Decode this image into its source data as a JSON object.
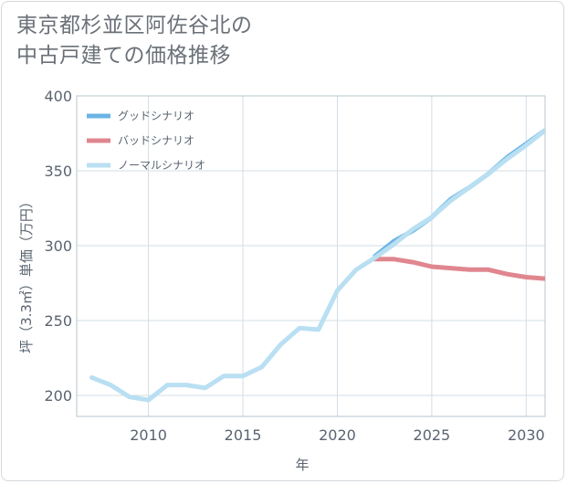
{
  "title": {
    "line1": "東京都杉並区阿佐谷北の",
    "line2": "中古戸建ての価格推移"
  },
  "chart_data": {
    "type": "line",
    "xlabel": "年",
    "ylabel": "坪（3.3㎡）単価（万円）",
    "xlim": [
      2006.2,
      2031.0
    ],
    "ylim": [
      186,
      400
    ],
    "x_ticks": [
      2010,
      2015,
      2020,
      2025,
      2030
    ],
    "y_ticks": [
      200,
      250,
      300,
      350,
      400
    ],
    "grid": true,
    "legend_position": "top-left",
    "series": [
      {
        "name": "グッドシナリオ",
        "color": "#6cb4e4",
        "x": [
          2022,
          2023,
          2024,
          2025,
          2026,
          2027,
          2028,
          2029,
          2030,
          2031
        ],
        "y": [
          293,
          303,
          310,
          319,
          331,
          339,
          348,
          359,
          368,
          377
        ]
      },
      {
        "name": "バッドシナリオ",
        "color": "#e0868f",
        "x": [
          2022,
          2023,
          2024,
          2025,
          2026,
          2027,
          2028,
          2029,
          2030,
          2031
        ],
        "y": [
          291,
          291,
          289,
          286,
          285,
          284,
          284,
          281,
          279,
          278
        ]
      },
      {
        "name": "ノーマルシナリオ",
        "color": "#b9dff2",
        "x": [
          2007,
          2008,
          2009,
          2010,
          2011,
          2012,
          2013,
          2014,
          2015,
          2016,
          2017,
          2018,
          2019,
          2020,
          2021,
          2022,
          2023,
          2024,
          2025,
          2026,
          2027,
          2028,
          2029,
          2030,
          2031
        ],
        "y": [
          212,
          207,
          199,
          197,
          207,
          207,
          205,
          213,
          213,
          219,
          234,
          245,
          244,
          270,
          284,
          292,
          301,
          311,
          319,
          330,
          339,
          348,
          358,
          367,
          377
        ]
      }
    ]
  }
}
